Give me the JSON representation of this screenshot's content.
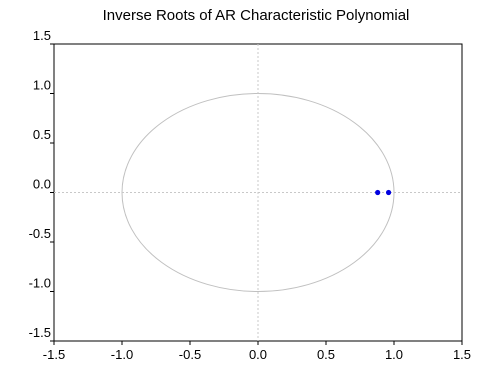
{
  "chart_data": {
    "type": "scatter",
    "title": "Inverse Roots of AR Characteristic Polynomial",
    "xlabel": "",
    "ylabel": "",
    "xlim": [
      -1.5,
      1.5
    ],
    "ylim": [
      -1.5,
      1.5
    ],
    "xticks": [
      "-1.5",
      "-1.0",
      "-0.5",
      "0.0",
      "0.5",
      "1.0",
      "1.5"
    ],
    "yticks": [
      "1.5",
      "1.0",
      "0.5",
      "0.0",
      "-0.5",
      "-1.0",
      "-1.5"
    ],
    "xtick_values": [
      -1.5,
      -1.0,
      -0.5,
      0.0,
      0.5,
      1.0,
      1.5
    ],
    "ytick_values": [
      1.5,
      1.0,
      0.5,
      0.0,
      -0.5,
      -1.0,
      -1.5
    ],
    "unit_circle": true,
    "reference_lines": true,
    "points": [
      {
        "x": 0.88,
        "y": 0.0
      },
      {
        "x": 0.96,
        "y": 0.0
      }
    ],
    "colors": {
      "point": "#0000e0",
      "circle": "#c0c0c0",
      "reference": "#c8c8c8",
      "axis": "#000000"
    }
  }
}
